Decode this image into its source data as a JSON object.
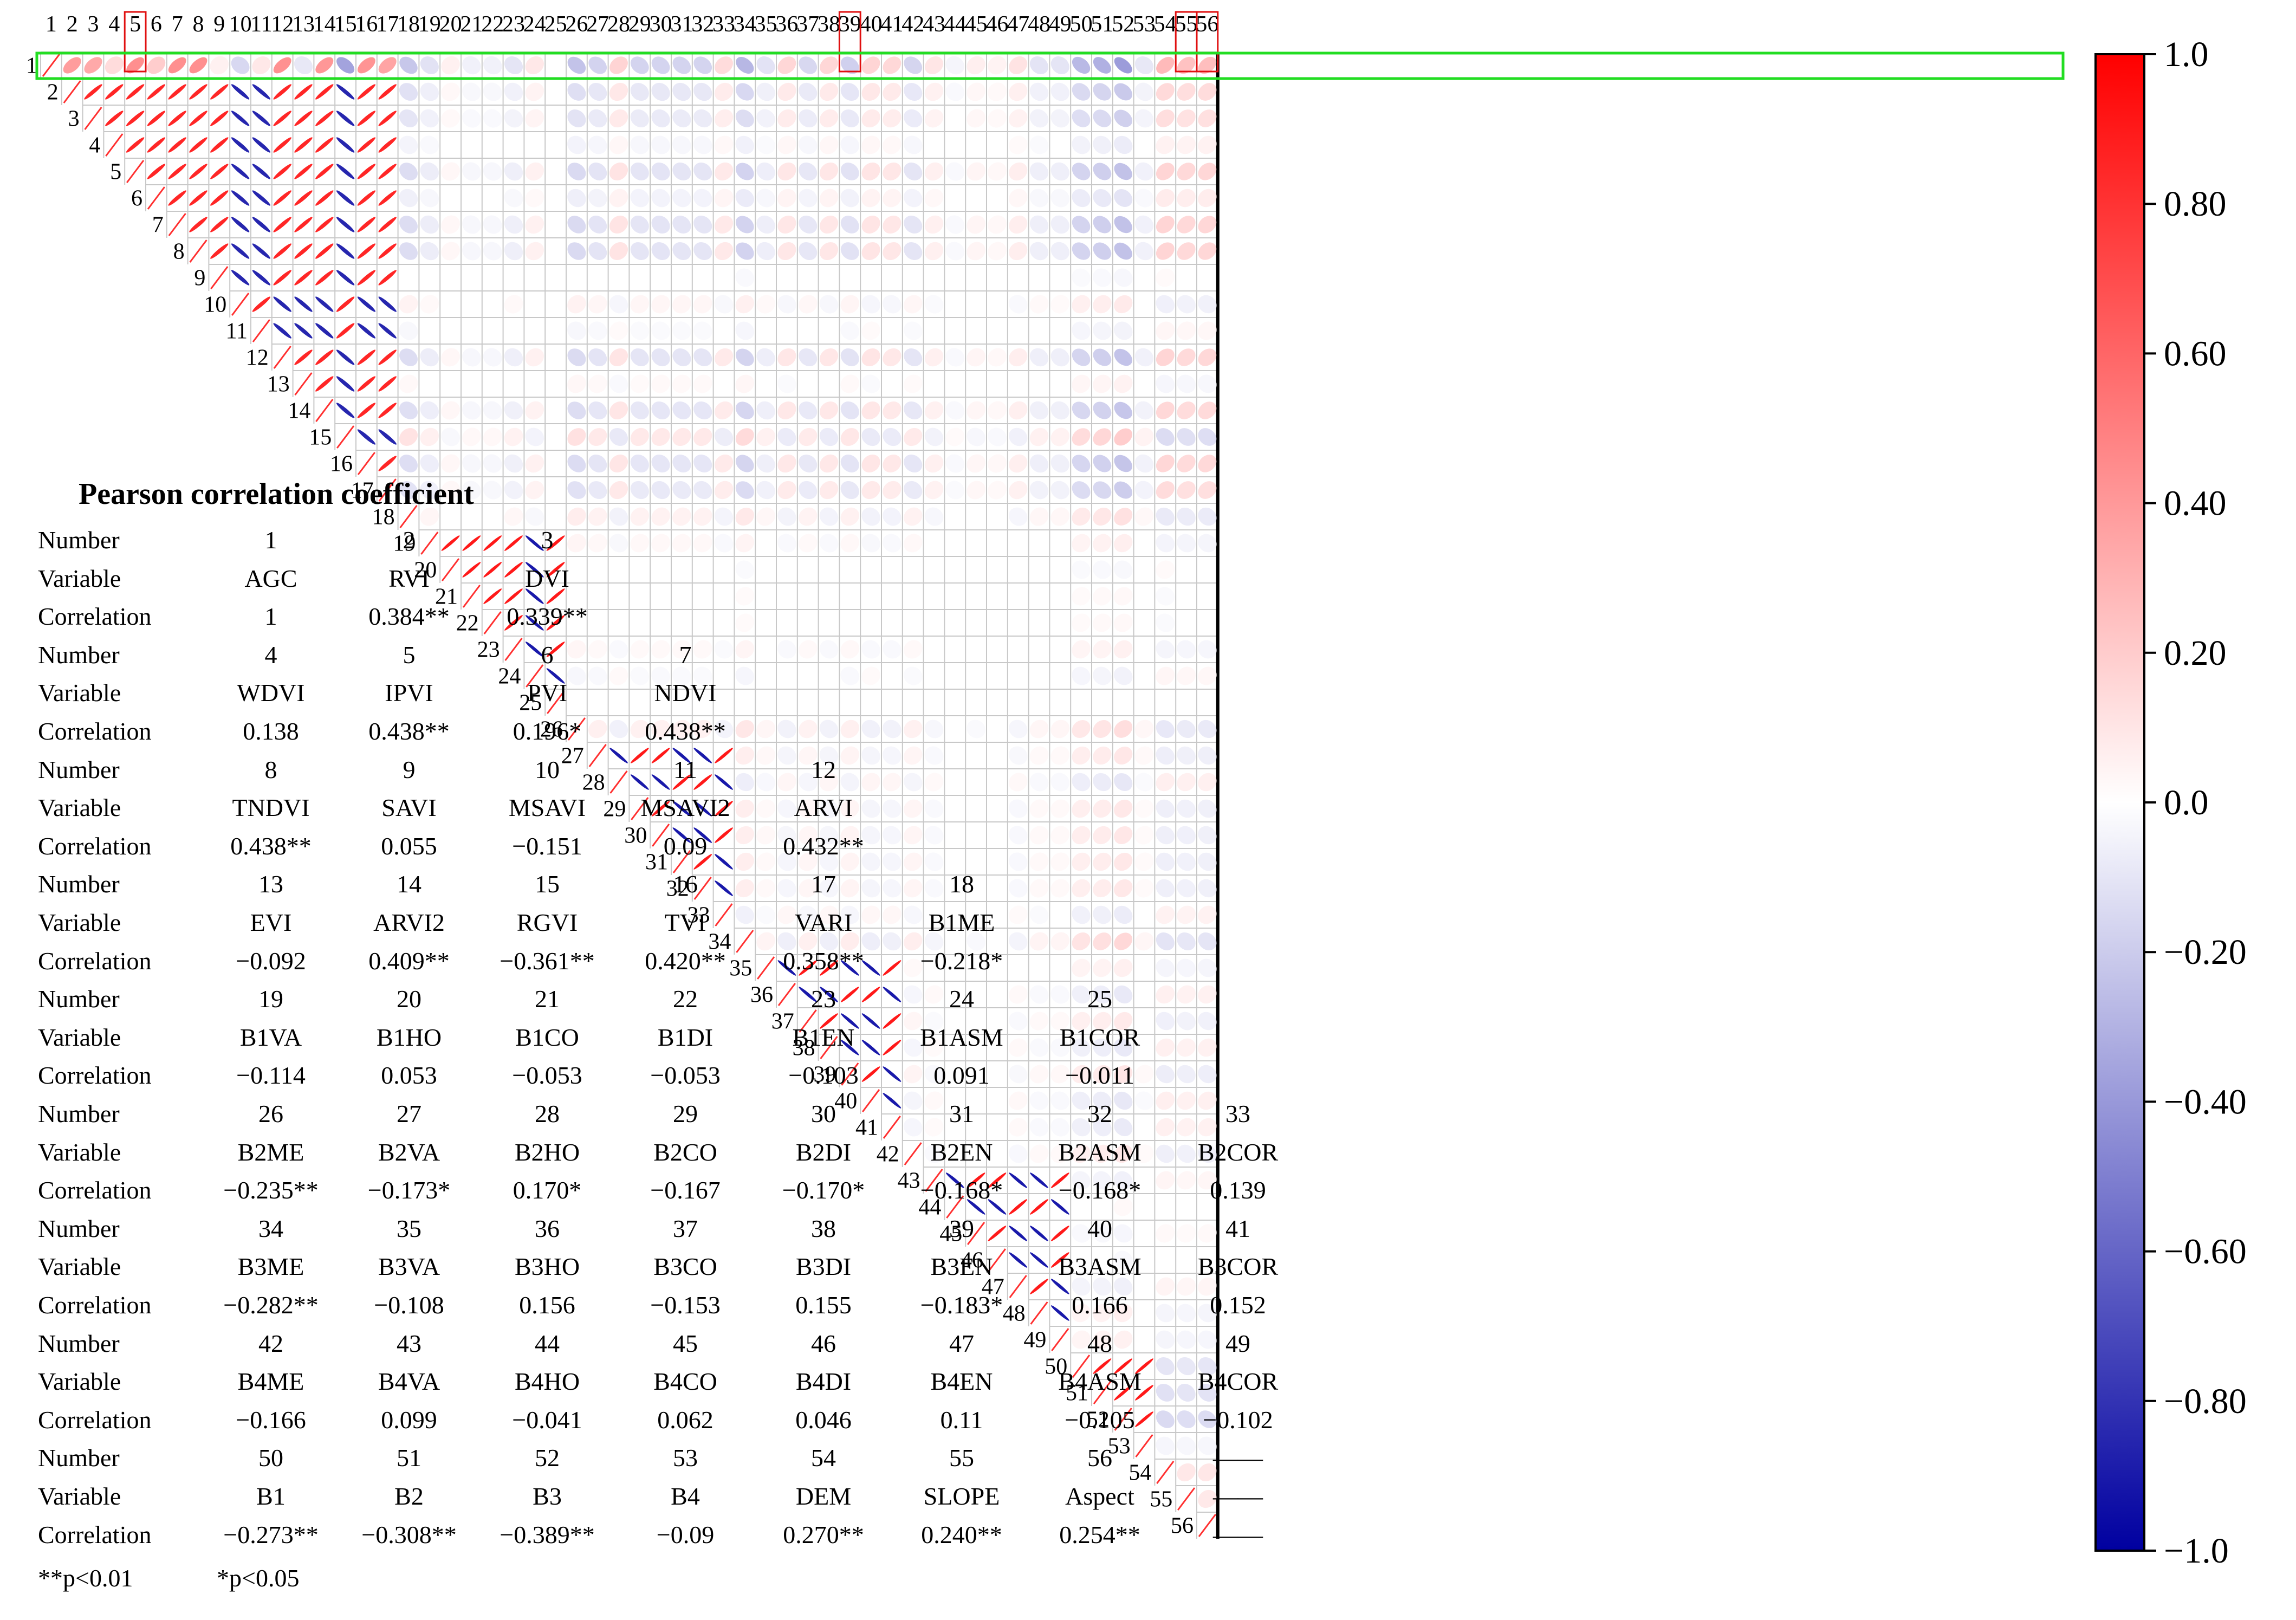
{
  "chart_data": {
    "type": "heatmap",
    "subtype": "correlation-ellipse-matrix (upper triangle)",
    "n_variables": 56,
    "variable_numbers": [
      1,
      2,
      3,
      4,
      5,
      6,
      7,
      8,
      9,
      10,
      11,
      12,
      13,
      14,
      15,
      16,
      17,
      18,
      19,
      20,
      21,
      22,
      23,
      24,
      25,
      26,
      27,
      28,
      29,
      30,
      31,
      32,
      33,
      34,
      35,
      36,
      37,
      38,
      39,
      40,
      41,
      42,
      43,
      44,
      45,
      46,
      47,
      48,
      49,
      50,
      51,
      52,
      53,
      54,
      55,
      56
    ],
    "column_tick_labels": [
      "1",
      "2",
      "3",
      "4",
      "5",
      "6",
      "7",
      "8",
      "9",
      "10",
      "11",
      "12",
      "13",
      "14",
      "15",
      "16",
      "17",
      "18",
      "19",
      "20",
      "21",
      "22",
      "23",
      "24",
      "25",
      "26",
      "27",
      "28",
      "29",
      "30",
      "31",
      "32",
      "33",
      "34",
      "35",
      "36",
      "37",
      "38",
      "39",
      "40",
      "41",
      "42",
      "43",
      "44",
      "45",
      "46",
      "47",
      "48",
      "49",
      "50",
      "51",
      "52",
      "53",
      "54",
      "55",
      "56"
    ],
    "highlighted_columns": [
      5,
      39,
      55,
      56
    ],
    "highlighted_row": 1,
    "colorbar": {
      "ticks": [
        "1.0",
        "0.80",
        "0.60",
        "0.40",
        "0.20",
        "0.0",
        "−0.20",
        "−0.40",
        "−0.60",
        "−0.80",
        "−1.0"
      ],
      "range": [
        -1.0,
        1.0
      ],
      "colors": {
        "positive": "#ff0000",
        "zero": "#ffffff",
        "negative": "#0000a0"
      }
    },
    "correlation_with_AGC": [
      1,
      0.384,
      0.339,
      0.138,
      0.438,
      0.196,
      0.438,
      0.438,
      0.055,
      -0.151,
      0.09,
      0.432,
      -0.092,
      0.409,
      -0.361,
      0.42,
      0.358,
      -0.218,
      -0.114,
      0.053,
      -0.053,
      -0.053,
      -0.103,
      0.091,
      -0.011,
      -0.235,
      -0.173,
      0.17,
      -0.167,
      -0.17,
      -0.168,
      -0.168,
      0.139,
      -0.282,
      -0.108,
      0.156,
      -0.153,
      0.155,
      -0.183,
      0.166,
      0.152,
      -0.166,
      0.099,
      -0.041,
      0.062,
      0.046,
      0.11,
      -0.105,
      -0.102,
      -0.273,
      -0.308,
      -0.389,
      -0.09,
      0.27,
      0.24,
      0.254
    ],
    "highly_correlated_blocks": [
      {
        "from": 2,
        "to": 17,
        "strength": 0.85
      },
      {
        "from": 19,
        "to": 25,
        "strength": 0.9
      },
      {
        "from": 27,
        "to": 33,
        "strength": 0.9
      },
      {
        "from": 35,
        "to": 41,
        "strength": 0.9
      },
      {
        "from": 43,
        "to": 49,
        "strength": 0.9
      },
      {
        "from": 50,
        "to": 53,
        "strength": 0.9
      }
    ],
    "inverse_variables": [
      10,
      11,
      15,
      24,
      28,
      31,
      32,
      36,
      39,
      40,
      44,
      47,
      48
    ]
  },
  "legend_table": {
    "title": "Pearson correlation coefficient",
    "key_number": "Number",
    "key_variable": "Variable",
    "key_correlation": "Correlation",
    "groups": [
      {
        "numbers": [
          "1",
          "2",
          "3"
        ],
        "variables": [
          "AGC",
          "RVI",
          "DVI"
        ],
        "correlations": [
          "1",
          "0.384**",
          "0.339**"
        ]
      },
      {
        "numbers": [
          "4",
          "5",
          "6",
          "7"
        ],
        "variables": [
          "WDVI",
          "IPVI",
          "PVI",
          "NDVI"
        ],
        "correlations": [
          "0.138",
          "0.438**",
          "0.196*",
          "0.438**"
        ]
      },
      {
        "numbers": [
          "8",
          "9",
          "10",
          "11",
          "12"
        ],
        "variables": [
          "TNDVI",
          "SAVI",
          "MSAVI",
          "MSAVI2",
          "ARVI"
        ],
        "correlations": [
          "0.438**",
          "0.055",
          "−0.151",
          "0.09",
          "0.432**"
        ]
      },
      {
        "numbers": [
          "13",
          "14",
          "15",
          "16",
          "17",
          "18"
        ],
        "variables": [
          "EVI",
          "ARVI2",
          "RGVI",
          "TVI",
          "VARI",
          "B1ME"
        ],
        "correlations": [
          "−0.092",
          "0.409**",
          "−0.361**",
          "0.420**",
          "0.358**",
          "−0.218*"
        ]
      },
      {
        "numbers": [
          "19",
          "20",
          "21",
          "22",
          "23",
          "24",
          "25"
        ],
        "variables": [
          "B1VA",
          "B1HO",
          "B1CO",
          "B1DI",
          "B1EN",
          "B1ASM",
          "B1COR"
        ],
        "correlations": [
          "−0.114",
          "0.053",
          "−0.053",
          "−0.053",
          "−0.103",
          "0.091",
          "−0.011"
        ]
      },
      {
        "numbers": [
          "26",
          "27",
          "28",
          "29",
          "30",
          "31",
          "32",
          "33"
        ],
        "variables": [
          "B2ME",
          "B2VA",
          "B2HO",
          "B2CO",
          "B2DI",
          "B2EN",
          "B2ASM",
          "B2COR"
        ],
        "correlations": [
          "−0.235**",
          "−0.173*",
          "0.170*",
          "−0.167",
          "−0.170*",
          "−0.168*",
          "−0.168*",
          "0.139"
        ]
      },
      {
        "numbers": [
          "34",
          "35",
          "36",
          "37",
          "38",
          "39",
          "40",
          "41"
        ],
        "variables": [
          "B3ME",
          "B3VA",
          "B3HO",
          "B3CO",
          "B3DI",
          "B3EN",
          "B3ASM",
          "B3COR"
        ],
        "correlations": [
          "−0.282**",
          "−0.108",
          "0.156",
          "−0.153",
          "0.155",
          "−0.183*",
          "0.166",
          "0.152"
        ]
      },
      {
        "numbers": [
          "42",
          "43",
          "44",
          "45",
          "46",
          "47",
          "48",
          "49"
        ],
        "variables": [
          "B4ME",
          "B4VA",
          "B4HO",
          "B4CO",
          "B4DI",
          "B4EN",
          "B4ASM",
          "B4COR"
        ],
        "correlations": [
          "−0.166",
          "0.099",
          "−0.041",
          "0.062",
          "0.046",
          "0.11",
          "−0.105",
          "−0.102"
        ]
      },
      {
        "numbers": [
          "50",
          "51",
          "52",
          "53",
          "54",
          "55",
          "56",
          "——"
        ],
        "variables": [
          "B1",
          "B2",
          "B3",
          "B4",
          "DEM",
          "SLOPE",
          "Aspect",
          "——"
        ],
        "correlations": [
          "−0.273**",
          "−0.308**",
          "−0.389**",
          "−0.09",
          "0.270**",
          "0.240**",
          "0.254**",
          "——"
        ]
      }
    ],
    "significance_note_1": "**p<0.01",
    "significance_note_2": "*p<0.05"
  }
}
